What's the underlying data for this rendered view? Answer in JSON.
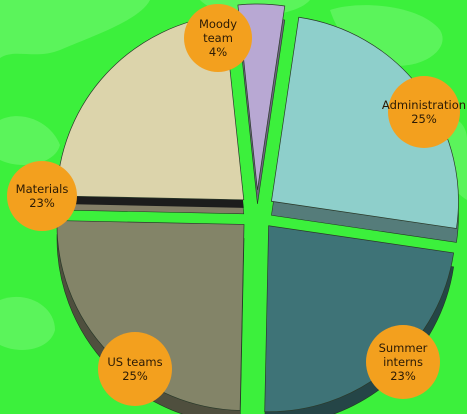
{
  "chart_data": {
    "type": "pie",
    "style": "exploded-3d",
    "legend": "none",
    "slices": [
      {
        "label_lines": [
          "Moody",
          "team"
        ],
        "value": 4,
        "value_text": "4%",
        "color": "#b8a8d3"
      },
      {
        "label_lines": [
          "Administration"
        ],
        "value": 25,
        "value_text": "25%",
        "color": "#8ecfcb"
      },
      {
        "label_lines": [
          "Summer",
          "interns"
        ],
        "value": 23,
        "value_text": "23%",
        "color": "#3e7377"
      },
      {
        "label_lines": [
          "US teams"
        ],
        "value": 25,
        "value_text": "25%",
        "color": "#838468"
      },
      {
        "label_lines": [
          "Materials"
        ],
        "value": 23,
        "value_text": "23%",
        "color": "#dcd4ab"
      }
    ]
  },
  "colors": {
    "background": "#3cf03c",
    "background_blob": "#66f566",
    "callout_fill": "#f3a01e",
    "label_text": "#2b1a05"
  }
}
